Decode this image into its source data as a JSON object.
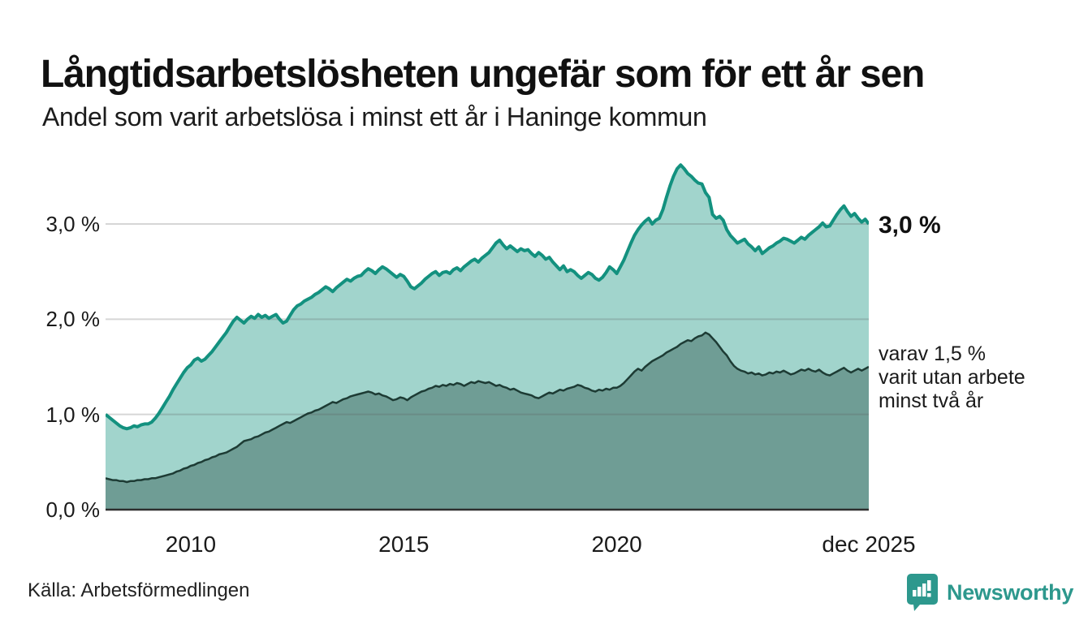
{
  "header": {
    "title": "Långtidsarbetslösheten ungefär som för ett år sen",
    "subtitle": "Andel som varit arbetslösa i minst ett år i Haninge kommun"
  },
  "chart_data": {
    "type": "area",
    "title": "Långtidsarbetslösheten ungefär som för ett år sen",
    "subtitle": "Andel som varit arbetslösa i minst ett år i Haninge kommun",
    "unit": "%",
    "x_start": "jan 2008",
    "x_end": "dec 2025",
    "points_per_year": 12,
    "ylim": [
      0,
      3.83
    ],
    "grid": "horizontal",
    "y_ticks": [
      {
        "value": 0,
        "label": "0,0 %"
      },
      {
        "value": 1,
        "label": "1,0 %"
      },
      {
        "value": 2,
        "label": "2,0 %"
      },
      {
        "value": 3,
        "label": "3,0 %"
      }
    ],
    "x_ticks": [
      {
        "label": "2010",
        "month_index": 24
      },
      {
        "label": "2015",
        "month_index": 84
      },
      {
        "label": "2020",
        "month_index": 144
      },
      {
        "label": "dec 2025",
        "month_index": 215
      }
    ],
    "series": [
      {
        "id": "arbetslosa-minst-ett-ar",
        "color": "#13917f",
        "fill": "#a1d4cc",
        "line_width": 4,
        "end_value_label": "3,0 %",
        "values": [
          1.0,
          0.97,
          0.94,
          0.91,
          0.88,
          0.86,
          0.85,
          0.86,
          0.88,
          0.87,
          0.89,
          0.9,
          0.9,
          0.92,
          0.96,
          1.01,
          1.07,
          1.13,
          1.19,
          1.26,
          1.32,
          1.38,
          1.44,
          1.49,
          1.52,
          1.57,
          1.59,
          1.56,
          1.58,
          1.62,
          1.66,
          1.71,
          1.76,
          1.81,
          1.86,
          1.92,
          1.98,
          2.02,
          1.99,
          1.96,
          2.0,
          2.03,
          2.01,
          2.05,
          2.02,
          2.04,
          2.01,
          2.03,
          2.05,
          2.0,
          1.96,
          1.98,
          2.04,
          2.1,
          2.14,
          2.16,
          2.19,
          2.21,
          2.23,
          2.26,
          2.28,
          2.31,
          2.34,
          2.32,
          2.29,
          2.33,
          2.36,
          2.39,
          2.42,
          2.4,
          2.43,
          2.45,
          2.46,
          2.5,
          2.53,
          2.51,
          2.48,
          2.52,
          2.55,
          2.53,
          2.5,
          2.47,
          2.44,
          2.47,
          2.45,
          2.4,
          2.34,
          2.32,
          2.35,
          2.38,
          2.42,
          2.45,
          2.48,
          2.5,
          2.46,
          2.49,
          2.5,
          2.48,
          2.52,
          2.54,
          2.51,
          2.55,
          2.58,
          2.61,
          2.63,
          2.6,
          2.64,
          2.67,
          2.7,
          2.75,
          2.8,
          2.83,
          2.78,
          2.74,
          2.77,
          2.74,
          2.71,
          2.74,
          2.72,
          2.73,
          2.69,
          2.66,
          2.7,
          2.67,
          2.63,
          2.65,
          2.6,
          2.56,
          2.52,
          2.56,
          2.5,
          2.52,
          2.5,
          2.46,
          2.43,
          2.46,
          2.49,
          2.47,
          2.43,
          2.41,
          2.44,
          2.49,
          2.55,
          2.52,
          2.48,
          2.55,
          2.62,
          2.71,
          2.8,
          2.88,
          2.94,
          2.99,
          3.03,
          3.06,
          3.0,
          3.04,
          3.06,
          3.15,
          3.28,
          3.4,
          3.5,
          3.58,
          3.62,
          3.58,
          3.53,
          3.5,
          3.46,
          3.43,
          3.42,
          3.33,
          3.28,
          3.1,
          3.06,
          3.08,
          3.04,
          2.94,
          2.88,
          2.84,
          2.8,
          2.82,
          2.84,
          2.79,
          2.76,
          2.72,
          2.76,
          2.69,
          2.72,
          2.75,
          2.77,
          2.8,
          2.82,
          2.85,
          2.84,
          2.82,
          2.8,
          2.83,
          2.86,
          2.84,
          2.88,
          2.91,
          2.94,
          2.97,
          3.01,
          2.97,
          2.98,
          3.04,
          3.1,
          3.15,
          3.19,
          3.13,
          3.08,
          3.11,
          3.06,
          3.02,
          3.05,
          3.0
        ]
      },
      {
        "id": "varav-minst-tva-ar",
        "color": "#1d3b34",
        "fill": "#6f9d95",
        "line_width": 2.5,
        "end_value_label": "1,5 %",
        "values": [
          0.33,
          0.32,
          0.31,
          0.31,
          0.3,
          0.3,
          0.29,
          0.3,
          0.3,
          0.31,
          0.31,
          0.32,
          0.32,
          0.33,
          0.33,
          0.34,
          0.35,
          0.36,
          0.37,
          0.38,
          0.4,
          0.41,
          0.43,
          0.44,
          0.46,
          0.47,
          0.49,
          0.5,
          0.52,
          0.53,
          0.55,
          0.56,
          0.58,
          0.59,
          0.6,
          0.62,
          0.64,
          0.66,
          0.69,
          0.72,
          0.73,
          0.74,
          0.76,
          0.77,
          0.79,
          0.81,
          0.82,
          0.84,
          0.86,
          0.88,
          0.9,
          0.92,
          0.91,
          0.93,
          0.95,
          0.97,
          0.99,
          1.01,
          1.02,
          1.04,
          1.05,
          1.07,
          1.09,
          1.11,
          1.13,
          1.12,
          1.14,
          1.16,
          1.17,
          1.19,
          1.2,
          1.21,
          1.22,
          1.23,
          1.24,
          1.23,
          1.21,
          1.22,
          1.2,
          1.19,
          1.17,
          1.15,
          1.16,
          1.18,
          1.17,
          1.15,
          1.18,
          1.2,
          1.22,
          1.24,
          1.25,
          1.27,
          1.28,
          1.3,
          1.29,
          1.31,
          1.3,
          1.32,
          1.31,
          1.33,
          1.32,
          1.3,
          1.32,
          1.34,
          1.33,
          1.35,
          1.34,
          1.33,
          1.34,
          1.32,
          1.3,
          1.31,
          1.29,
          1.28,
          1.26,
          1.27,
          1.25,
          1.23,
          1.22,
          1.21,
          1.2,
          1.18,
          1.17,
          1.19,
          1.21,
          1.23,
          1.22,
          1.24,
          1.26,
          1.25,
          1.27,
          1.28,
          1.29,
          1.31,
          1.3,
          1.28,
          1.27,
          1.25,
          1.24,
          1.26,
          1.25,
          1.27,
          1.26,
          1.28,
          1.28,
          1.3,
          1.33,
          1.37,
          1.41,
          1.45,
          1.48,
          1.46,
          1.5,
          1.53,
          1.56,
          1.58,
          1.6,
          1.62,
          1.65,
          1.67,
          1.69,
          1.71,
          1.74,
          1.76,
          1.78,
          1.77,
          1.8,
          1.82,
          1.83,
          1.86,
          1.84,
          1.8,
          1.76,
          1.71,
          1.66,
          1.62,
          1.56,
          1.51,
          1.48,
          1.46,
          1.45,
          1.43,
          1.44,
          1.42,
          1.43,
          1.41,
          1.42,
          1.44,
          1.43,
          1.45,
          1.44,
          1.46,
          1.44,
          1.42,
          1.43,
          1.45,
          1.47,
          1.46,
          1.48,
          1.46,
          1.45,
          1.47,
          1.44,
          1.42,
          1.41,
          1.43,
          1.45,
          1.47,
          1.49,
          1.46,
          1.44,
          1.46,
          1.48,
          1.46,
          1.48,
          1.5
        ]
      }
    ],
    "end_labels": {
      "total": "3,0 %",
      "annotation_lines": [
        "varav 1,5 %",
        "varit utan arbete",
        "minst två år"
      ]
    }
  },
  "footer": {
    "source": "Källa: Arbetsförmedlingen",
    "logo_text": "Newsworthy"
  },
  "colors": {
    "line_total": "#13917f",
    "fill_total": "#a1d4cc",
    "line_two_year": "#1d3b34",
    "fill_two_year": "#6f9d95",
    "gridline": "#dddddd",
    "baseline": "#2f2f2f",
    "logo_teal": "#2d988d",
    "text": "#1a1a1a"
  }
}
